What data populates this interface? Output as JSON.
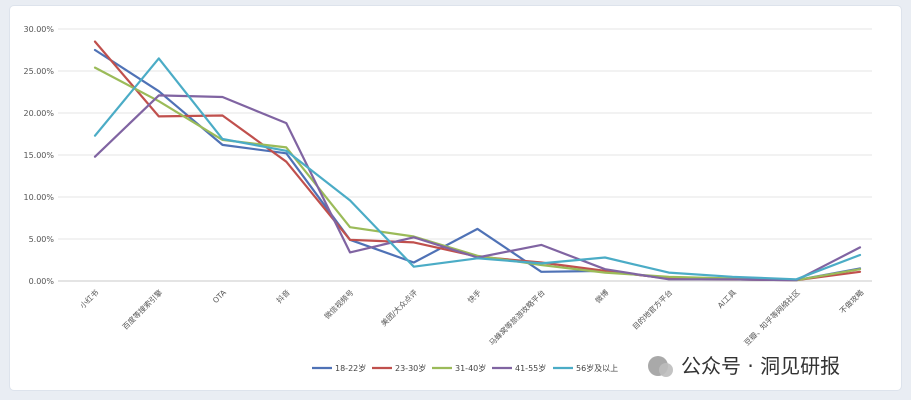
{
  "chart_data": {
    "type": "line",
    "categories": [
      "小红书",
      "百度等搜索引擎",
      "OTA",
      "抖音",
      "微信视频号",
      "美团/大众点评",
      "快手",
      "马蜂窝等旅游攻略平台",
      "微博",
      "目的地官方平台",
      "AI工具",
      "豆瓣、知乎等网络社区",
      "不做攻略"
    ],
    "y_tick_labels": [
      "0.00%",
      "5.00%",
      "10.00%",
      "15.00%",
      "20.00%",
      "25.00%",
      "30.00%"
    ],
    "ylim": [
      0,
      30
    ],
    "grid": true,
    "legend_position": "bottom",
    "series": [
      {
        "name": "18-22岁",
        "color": "#4f72b6",
        "values": [
          27.5,
          22.6,
          16.2,
          15.2,
          4.9,
          2.2,
          6.2,
          1.1,
          1.2,
          0.3,
          0.2,
          0.1,
          1.5
        ]
      },
      {
        "name": "23-30岁",
        "color": "#c0504d",
        "values": [
          28.5,
          19.6,
          19.7,
          14.2,
          4.9,
          4.6,
          2.9,
          2.2,
          1.2,
          0.3,
          0.2,
          0.1,
          1.1
        ]
      },
      {
        "name": "31-40岁",
        "color": "#9bbb59",
        "values": [
          25.4,
          21.4,
          16.8,
          15.9,
          6.4,
          5.3,
          3.0,
          1.9,
          1.0,
          0.5,
          0.3,
          0.1,
          1.4
        ]
      },
      {
        "name": "41-55岁",
        "color": "#8064a2",
        "values": [
          14.8,
          22.1,
          21.9,
          18.8,
          3.4,
          5.2,
          2.8,
          4.3,
          1.4,
          0.2,
          0.2,
          0.1,
          4.0
        ]
      },
      {
        "name": "56岁及以上",
        "color": "#4bacc6",
        "values": [
          17.3,
          26.5,
          16.9,
          15.5,
          9.6,
          1.7,
          2.7,
          2.1,
          2.8,
          1.0,
          0.5,
          0.2,
          3.1
        ]
      }
    ]
  },
  "watermark": {
    "text": "公众号 · 洞见研报",
    "icon": "wechat-icon"
  }
}
